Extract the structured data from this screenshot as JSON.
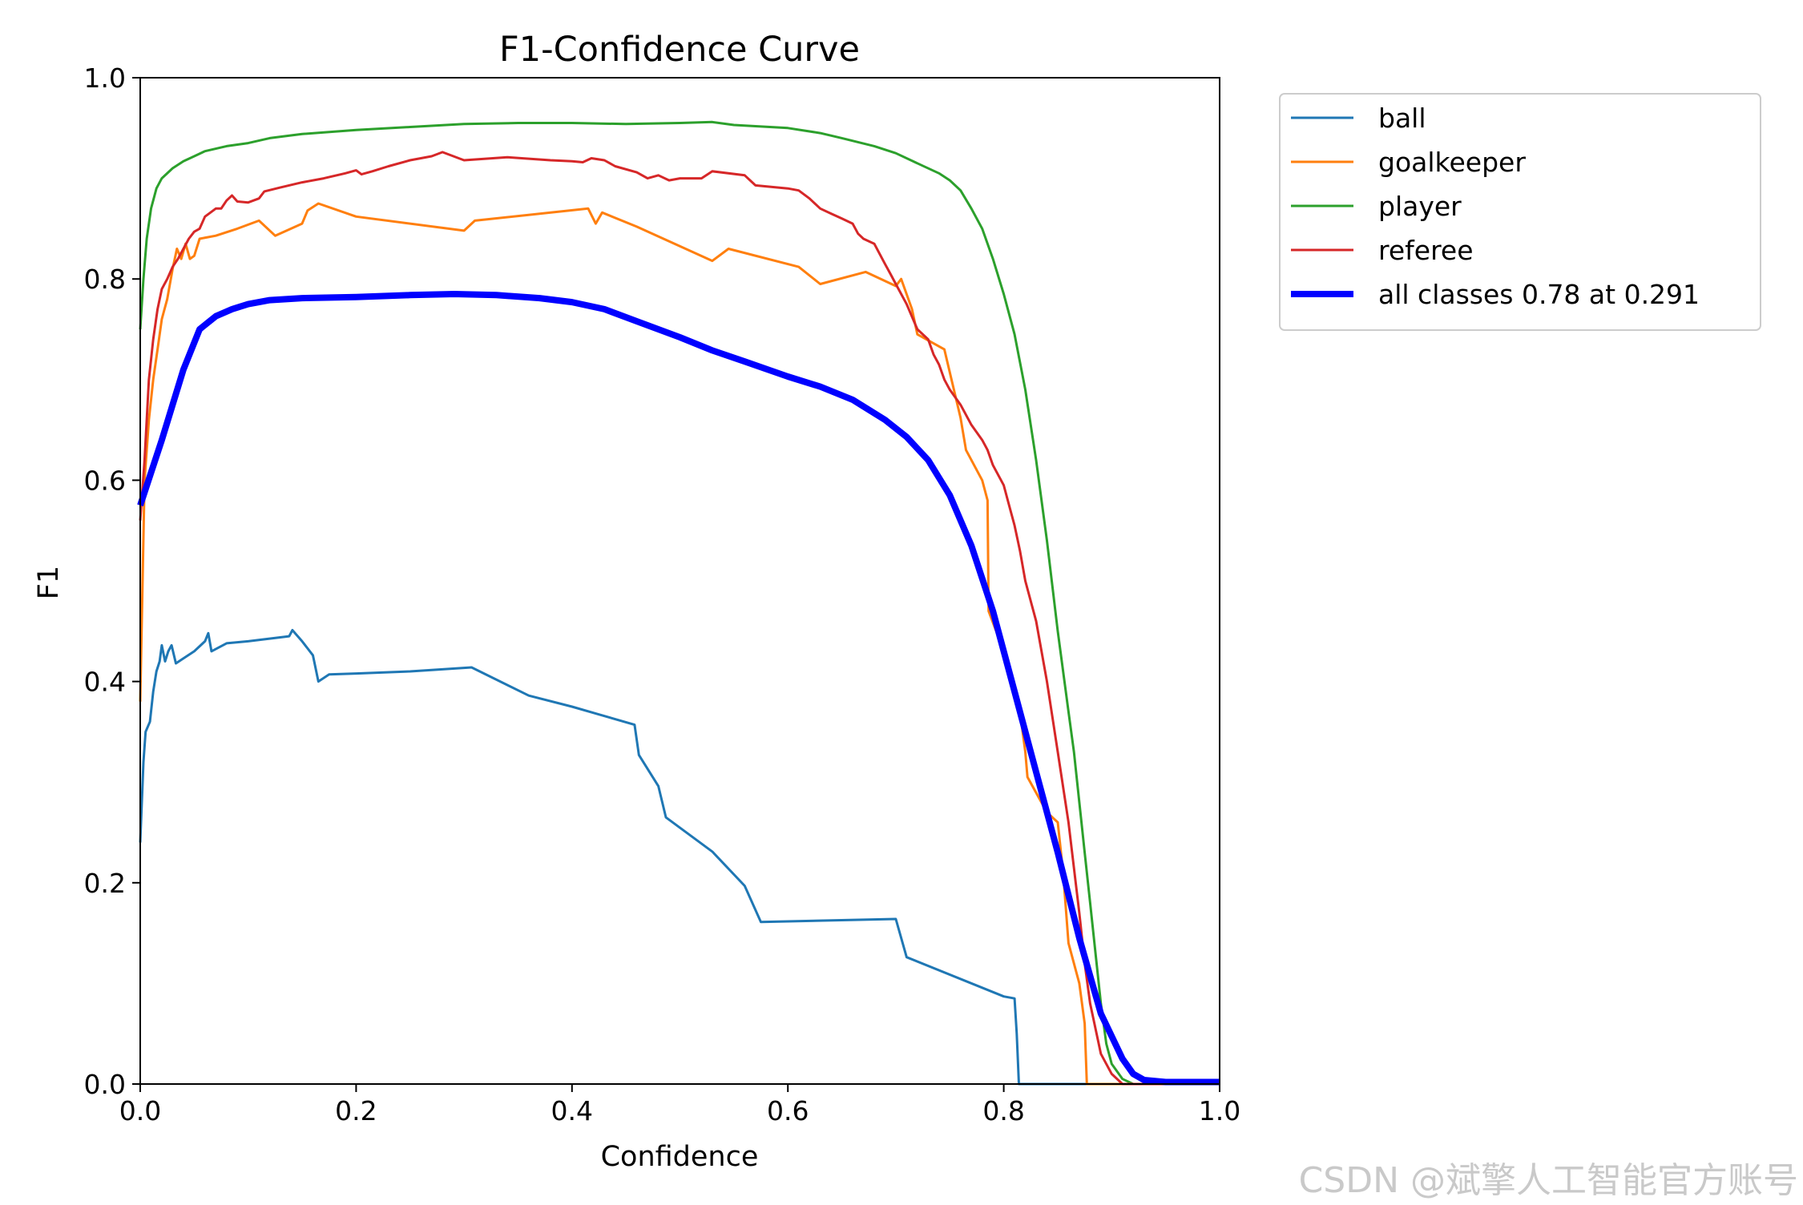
{
  "watermark": "CSDN @斌擎人工智能官方账号",
  "chart_data": {
    "type": "line",
    "title": "F1-Confidence Curve",
    "xlabel": "Confidence",
    "ylabel": "F1",
    "xlim": [
      0.0,
      1.0
    ],
    "ylim": [
      0.0,
      1.0
    ],
    "xticks": [
      "0.0",
      "0.2",
      "0.4",
      "0.6",
      "0.8",
      "1.0"
    ],
    "yticks": [
      "0.0",
      "0.2",
      "0.4",
      "0.6",
      "0.8",
      "1.0"
    ],
    "grid": false,
    "legend_position": "outside-right",
    "series": [
      {
        "name": "ball",
        "color": "#1f77b4",
        "line_width": 1.5,
        "points": [
          [
            0.0,
            0.24
          ],
          [
            0.003,
            0.32
          ],
          [
            0.005,
            0.35
          ],
          [
            0.009,
            0.36
          ],
          [
            0.012,
            0.39
          ],
          [
            0.015,
            0.41
          ],
          [
            0.018,
            0.42
          ],
          [
            0.02,
            0.436
          ],
          [
            0.023,
            0.42
          ],
          [
            0.026,
            0.43
          ],
          [
            0.029,
            0.436
          ],
          [
            0.033,
            0.418
          ],
          [
            0.04,
            0.423
          ],
          [
            0.05,
            0.43
          ],
          [
            0.06,
            0.44
          ],
          [
            0.063,
            0.448
          ],
          [
            0.066,
            0.43
          ],
          [
            0.08,
            0.438
          ],
          [
            0.1,
            0.44
          ],
          [
            0.138,
            0.445
          ],
          [
            0.141,
            0.451
          ],
          [
            0.15,
            0.44
          ],
          [
            0.16,
            0.426
          ],
          [
            0.165,
            0.4
          ],
          [
            0.175,
            0.407
          ],
          [
            0.2,
            0.408
          ],
          [
            0.25,
            0.41
          ],
          [
            0.307,
            0.414
          ],
          [
            0.36,
            0.386
          ],
          [
            0.4,
            0.375
          ],
          [
            0.458,
            0.357
          ],
          [
            0.462,
            0.327
          ],
          [
            0.48,
            0.296
          ],
          [
            0.487,
            0.265
          ],
          [
            0.53,
            0.231
          ],
          [
            0.56,
            0.197
          ],
          [
            0.575,
            0.161
          ],
          [
            0.7,
            0.164
          ],
          [
            0.71,
            0.126
          ],
          [
            0.8,
            0.087
          ],
          [
            0.81,
            0.085
          ],
          [
            0.812,
            0.05
          ],
          [
            0.814,
            0.0
          ],
          [
            1.0,
            0.0
          ]
        ]
      },
      {
        "name": "goalkeeper",
        "color": "#ff7f0e",
        "line_width": 1.5,
        "points": [
          [
            0.0,
            0.38
          ],
          [
            0.004,
            0.6
          ],
          [
            0.008,
            0.66
          ],
          [
            0.012,
            0.7
          ],
          [
            0.016,
            0.73
          ],
          [
            0.02,
            0.76
          ],
          [
            0.025,
            0.78
          ],
          [
            0.03,
            0.81
          ],
          [
            0.034,
            0.83
          ],
          [
            0.038,
            0.82
          ],
          [
            0.042,
            0.835
          ],
          [
            0.046,
            0.82
          ],
          [
            0.05,
            0.823
          ],
          [
            0.055,
            0.84
          ],
          [
            0.07,
            0.843
          ],
          [
            0.09,
            0.85
          ],
          [
            0.11,
            0.858
          ],
          [
            0.125,
            0.843
          ],
          [
            0.15,
            0.855
          ],
          [
            0.155,
            0.868
          ],
          [
            0.165,
            0.875
          ],
          [
            0.2,
            0.862
          ],
          [
            0.3,
            0.848
          ],
          [
            0.31,
            0.858
          ],
          [
            0.415,
            0.87
          ],
          [
            0.422,
            0.855
          ],
          [
            0.428,
            0.866
          ],
          [
            0.46,
            0.852
          ],
          [
            0.53,
            0.818
          ],
          [
            0.545,
            0.83
          ],
          [
            0.61,
            0.812
          ],
          [
            0.63,
            0.795
          ],
          [
            0.672,
            0.807
          ],
          [
            0.7,
            0.793
          ],
          [
            0.705,
            0.8
          ],
          [
            0.715,
            0.77
          ],
          [
            0.72,
            0.745
          ],
          [
            0.745,
            0.73
          ],
          [
            0.76,
            0.662
          ],
          [
            0.765,
            0.63
          ],
          [
            0.78,
            0.6
          ],
          [
            0.785,
            0.58
          ],
          [
            0.786,
            0.47
          ],
          [
            0.8,
            0.43
          ],
          [
            0.81,
            0.39
          ],
          [
            0.815,
            0.37
          ],
          [
            0.82,
            0.33
          ],
          [
            0.822,
            0.305
          ],
          [
            0.84,
            0.27
          ],
          [
            0.85,
            0.26
          ],
          [
            0.855,
            0.21
          ],
          [
            0.86,
            0.14
          ],
          [
            0.87,
            0.1
          ],
          [
            0.875,
            0.06
          ],
          [
            0.877,
            0.0
          ],
          [
            1.0,
            0.0
          ]
        ]
      },
      {
        "name": "player",
        "color": "#2ca02c",
        "line_width": 1.5,
        "points": [
          [
            0.0,
            0.75
          ],
          [
            0.003,
            0.8
          ],
          [
            0.006,
            0.84
          ],
          [
            0.01,
            0.87
          ],
          [
            0.015,
            0.89
          ],
          [
            0.02,
            0.9
          ],
          [
            0.03,
            0.91
          ],
          [
            0.04,
            0.917
          ],
          [
            0.05,
            0.922
          ],
          [
            0.06,
            0.927
          ],
          [
            0.08,
            0.932
          ],
          [
            0.1,
            0.935
          ],
          [
            0.12,
            0.94
          ],
          [
            0.15,
            0.944
          ],
          [
            0.2,
            0.948
          ],
          [
            0.25,
            0.951
          ],
          [
            0.3,
            0.954
          ],
          [
            0.35,
            0.955
          ],
          [
            0.4,
            0.955
          ],
          [
            0.45,
            0.954
          ],
          [
            0.5,
            0.955
          ],
          [
            0.53,
            0.956
          ],
          [
            0.55,
            0.953
          ],
          [
            0.6,
            0.95
          ],
          [
            0.63,
            0.945
          ],
          [
            0.65,
            0.94
          ],
          [
            0.68,
            0.932
          ],
          [
            0.7,
            0.925
          ],
          [
            0.72,
            0.915
          ],
          [
            0.74,
            0.905
          ],
          [
            0.75,
            0.898
          ],
          [
            0.76,
            0.888
          ],
          [
            0.77,
            0.87
          ],
          [
            0.78,
            0.85
          ],
          [
            0.79,
            0.82
          ],
          [
            0.8,
            0.785
          ],
          [
            0.81,
            0.745
          ],
          [
            0.82,
            0.69
          ],
          [
            0.83,
            0.62
          ],
          [
            0.84,
            0.54
          ],
          [
            0.85,
            0.45
          ],
          [
            0.86,
            0.37
          ],
          [
            0.865,
            0.33
          ],
          [
            0.87,
            0.28
          ],
          [
            0.875,
            0.23
          ],
          [
            0.88,
            0.18
          ],
          [
            0.885,
            0.13
          ],
          [
            0.89,
            0.08
          ],
          [
            0.895,
            0.04
          ],
          [
            0.9,
            0.02
          ],
          [
            0.91,
            0.005
          ],
          [
            0.92,
            0.0
          ],
          [
            1.0,
            0.0
          ]
        ]
      },
      {
        "name": "referee",
        "color": "#d62728",
        "line_width": 1.5,
        "points": [
          [
            0.0,
            0.56
          ],
          [
            0.004,
            0.62
          ],
          [
            0.008,
            0.7
          ],
          [
            0.012,
            0.74
          ],
          [
            0.016,
            0.77
          ],
          [
            0.02,
            0.79
          ],
          [
            0.025,
            0.8
          ],
          [
            0.03,
            0.812
          ],
          [
            0.035,
            0.82
          ],
          [
            0.04,
            0.83
          ],
          [
            0.045,
            0.84
          ],
          [
            0.05,
            0.847
          ],
          [
            0.055,
            0.85
          ],
          [
            0.06,
            0.862
          ],
          [
            0.065,
            0.866
          ],
          [
            0.07,
            0.87
          ],
          [
            0.075,
            0.87
          ],
          [
            0.08,
            0.878
          ],
          [
            0.085,
            0.883
          ],
          [
            0.09,
            0.877
          ],
          [
            0.1,
            0.876
          ],
          [
            0.11,
            0.88
          ],
          [
            0.115,
            0.887
          ],
          [
            0.13,
            0.891
          ],
          [
            0.15,
            0.896
          ],
          [
            0.17,
            0.9
          ],
          [
            0.19,
            0.905
          ],
          [
            0.2,
            0.908
          ],
          [
            0.205,
            0.904
          ],
          [
            0.215,
            0.907
          ],
          [
            0.23,
            0.912
          ],
          [
            0.25,
            0.918
          ],
          [
            0.27,
            0.922
          ],
          [
            0.28,
            0.926
          ],
          [
            0.3,
            0.918
          ],
          [
            0.34,
            0.921
          ],
          [
            0.38,
            0.918
          ],
          [
            0.4,
            0.917
          ],
          [
            0.41,
            0.916
          ],
          [
            0.418,
            0.92
          ],
          [
            0.43,
            0.918
          ],
          [
            0.44,
            0.912
          ],
          [
            0.46,
            0.906
          ],
          [
            0.47,
            0.9
          ],
          [
            0.48,
            0.903
          ],
          [
            0.49,
            0.898
          ],
          [
            0.5,
            0.9
          ],
          [
            0.52,
            0.9
          ],
          [
            0.53,
            0.907
          ],
          [
            0.56,
            0.903
          ],
          [
            0.57,
            0.893
          ],
          [
            0.6,
            0.89
          ],
          [
            0.61,
            0.888
          ],
          [
            0.62,
            0.88
          ],
          [
            0.63,
            0.87
          ],
          [
            0.64,
            0.865
          ],
          [
            0.65,
            0.86
          ],
          [
            0.66,
            0.855
          ],
          [
            0.665,
            0.845
          ],
          [
            0.67,
            0.84
          ],
          [
            0.68,
            0.835
          ],
          [
            0.685,
            0.825
          ],
          [
            0.69,
            0.815
          ],
          [
            0.695,
            0.805
          ],
          [
            0.7,
            0.795
          ],
          [
            0.71,
            0.775
          ],
          [
            0.72,
            0.75
          ],
          [
            0.73,
            0.74
          ],
          [
            0.735,
            0.725
          ],
          [
            0.74,
            0.715
          ],
          [
            0.745,
            0.7
          ],
          [
            0.75,
            0.69
          ],
          [
            0.76,
            0.675
          ],
          [
            0.765,
            0.665
          ],
          [
            0.77,
            0.655
          ],
          [
            0.78,
            0.64
          ],
          [
            0.785,
            0.63
          ],
          [
            0.79,
            0.615
          ],
          [
            0.8,
            0.595
          ],
          [
            0.805,
            0.575
          ],
          [
            0.81,
            0.555
          ],
          [
            0.815,
            0.53
          ],
          [
            0.82,
            0.5
          ],
          [
            0.83,
            0.46
          ],
          [
            0.84,
            0.4
          ],
          [
            0.85,
            0.33
          ],
          [
            0.86,
            0.26
          ],
          [
            0.87,
            0.17
          ],
          [
            0.875,
            0.12
          ],
          [
            0.88,
            0.08
          ],
          [
            0.89,
            0.03
          ],
          [
            0.9,
            0.01
          ],
          [
            0.91,
            0.0
          ],
          [
            1.0,
            0.0
          ]
        ]
      },
      {
        "name": "all classes 0.78 at 0.291",
        "color": "#0000ff",
        "line_width": 4,
        "points": [
          [
            0.0,
            0.575
          ],
          [
            0.02,
            0.64
          ],
          [
            0.04,
            0.71
          ],
          [
            0.055,
            0.75
          ],
          [
            0.07,
            0.763
          ],
          [
            0.085,
            0.77
          ],
          [
            0.1,
            0.775
          ],
          [
            0.12,
            0.779
          ],
          [
            0.15,
            0.781
          ],
          [
            0.2,
            0.782
          ],
          [
            0.25,
            0.784
          ],
          [
            0.291,
            0.785
          ],
          [
            0.33,
            0.784
          ],
          [
            0.37,
            0.781
          ],
          [
            0.4,
            0.777
          ],
          [
            0.43,
            0.77
          ],
          [
            0.46,
            0.758
          ],
          [
            0.5,
            0.742
          ],
          [
            0.53,
            0.729
          ],
          [
            0.56,
            0.718
          ],
          [
            0.6,
            0.703
          ],
          [
            0.63,
            0.693
          ],
          [
            0.66,
            0.68
          ],
          [
            0.69,
            0.66
          ],
          [
            0.71,
            0.643
          ],
          [
            0.73,
            0.62
          ],
          [
            0.75,
            0.585
          ],
          [
            0.77,
            0.535
          ],
          [
            0.79,
            0.47
          ],
          [
            0.81,
            0.39
          ],
          [
            0.83,
            0.31
          ],
          [
            0.85,
            0.23
          ],
          [
            0.87,
            0.145
          ],
          [
            0.89,
            0.07
          ],
          [
            0.91,
            0.025
          ],
          [
            0.92,
            0.01
          ],
          [
            0.93,
            0.004
          ],
          [
            0.95,
            0.002
          ],
          [
            1.0,
            0.002
          ]
        ]
      }
    ]
  }
}
